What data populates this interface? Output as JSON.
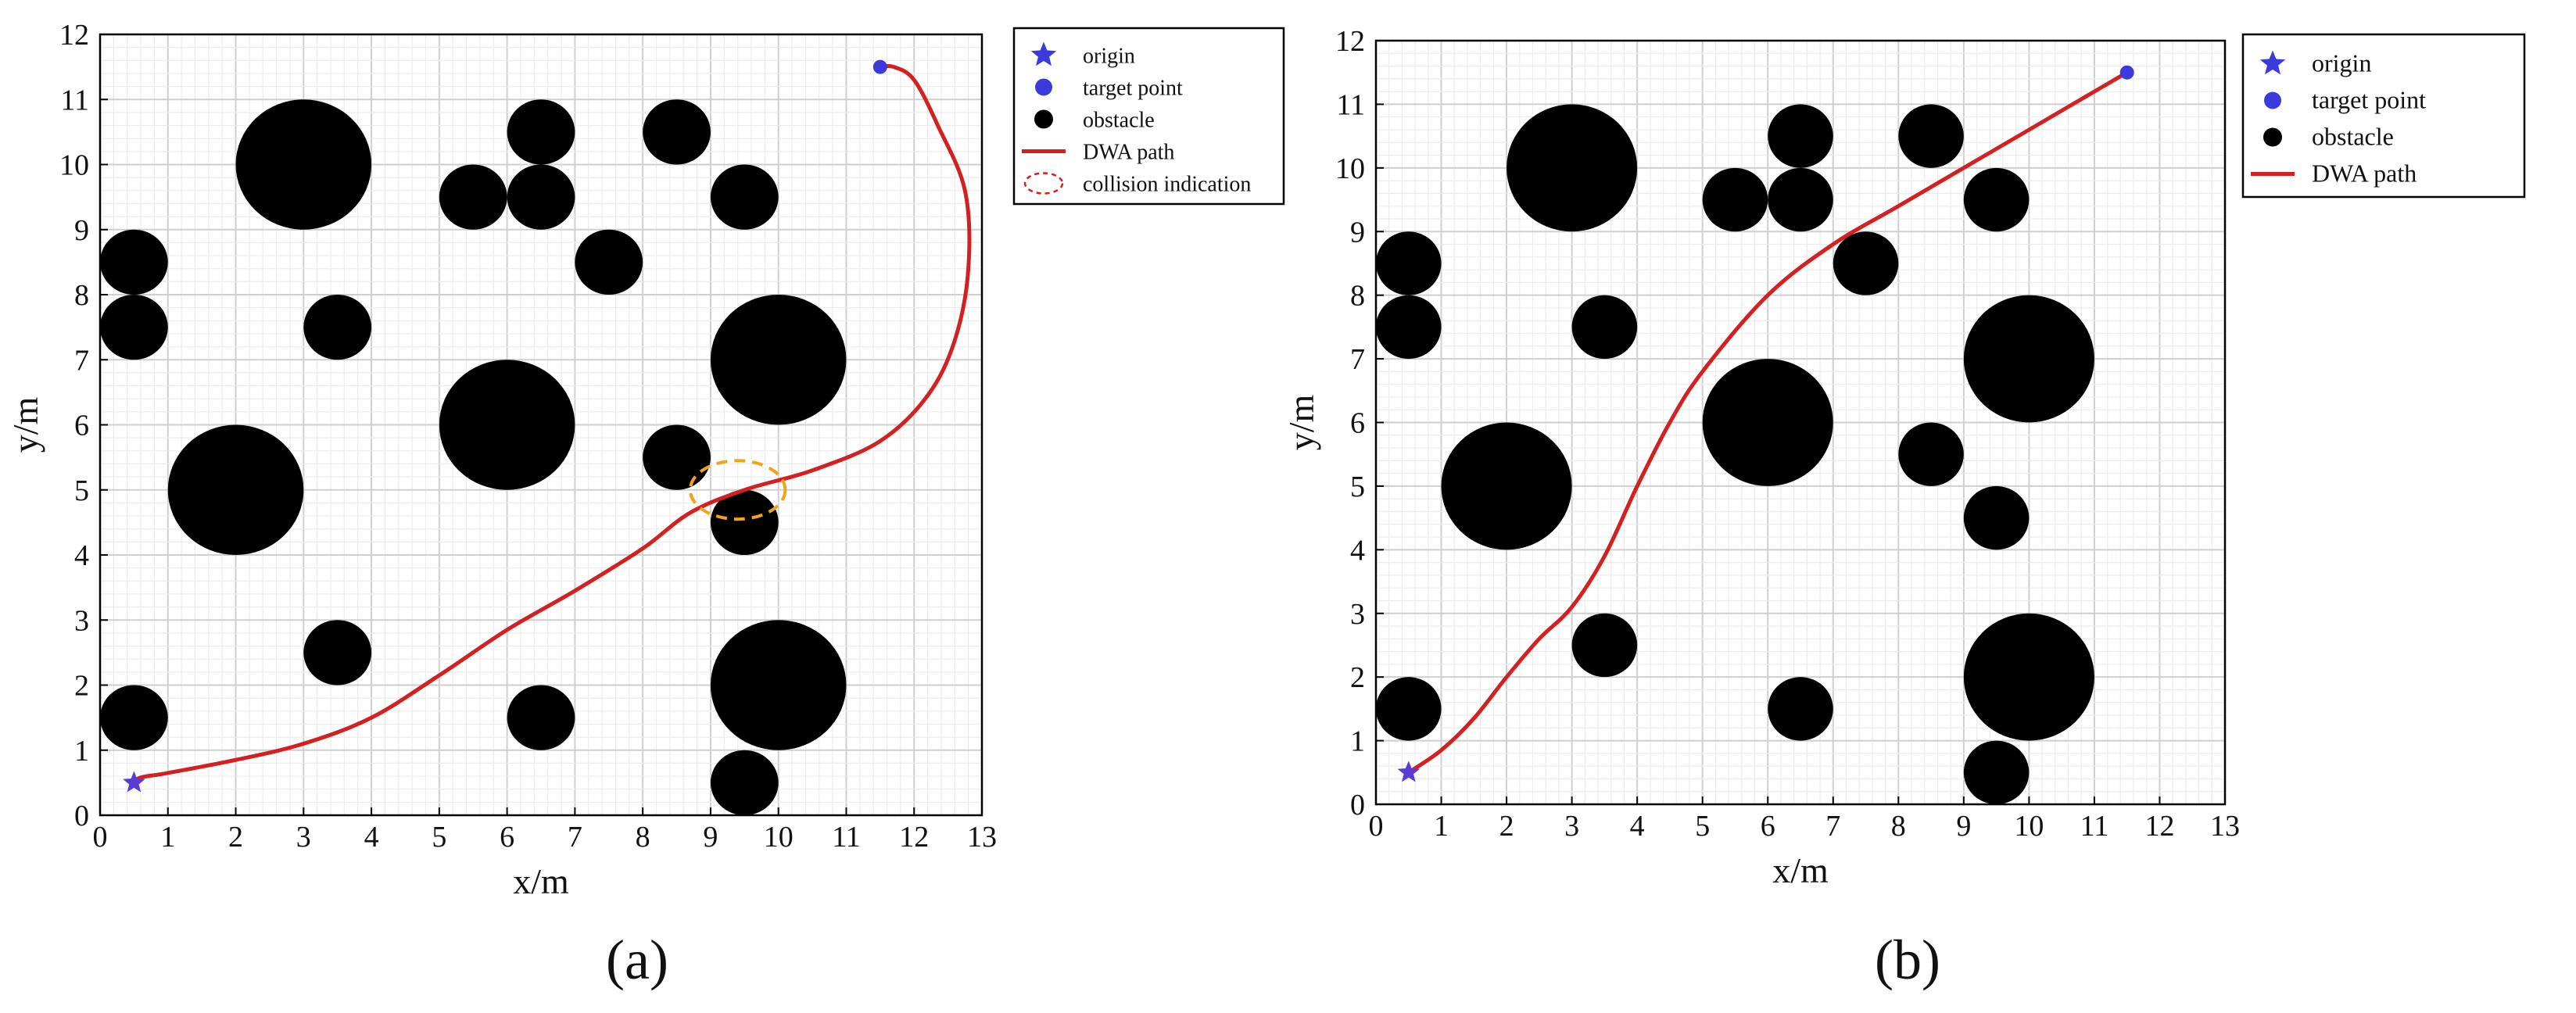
{
  "figure_labels": [
    "(a)",
    "(b)"
  ],
  "chart_data": [
    {
      "type": "scatter",
      "panel_label": "a",
      "xlabel": "x/m",
      "ylabel": "y/m",
      "xlim": [
        0,
        13
      ],
      "ylim": [
        0,
        12
      ],
      "xticks": [
        0,
        1,
        2,
        3,
        4,
        5,
        6,
        7,
        8,
        9,
        10,
        11,
        12,
        13
      ],
      "yticks": [
        0,
        1,
        2,
        3,
        4,
        5,
        6,
        7,
        8,
        9,
        10,
        11,
        12
      ],
      "grid": true,
      "legend_position": "top-right outside",
      "legend": [
        "origin",
        "target point",
        "obstacle",
        "DWA path",
        "collision indication"
      ],
      "origin": {
        "x": 0.5,
        "y": 0.5
      },
      "target": {
        "x": 11.5,
        "y": 11.5
      },
      "obstacles": [
        {
          "x": 3,
          "y": 10,
          "r": 1.0
        },
        {
          "x": 6,
          "y": 6,
          "r": 1.0
        },
        {
          "x": 2,
          "y": 5,
          "r": 1.0
        },
        {
          "x": 10,
          "y": 7,
          "r": 1.0
        },
        {
          "x": 10,
          "y": 2,
          "r": 1.0
        },
        {
          "x": 0.5,
          "y": 8.5,
          "r": 0.5
        },
        {
          "x": 0.5,
          "y": 7.5,
          "r": 0.5
        },
        {
          "x": 0.5,
          "y": 1.5,
          "r": 0.5
        },
        {
          "x": 3.5,
          "y": 7.5,
          "r": 0.5
        },
        {
          "x": 3.5,
          "y": 2.5,
          "r": 0.5
        },
        {
          "x": 5.5,
          "y": 9.5,
          "r": 0.5
        },
        {
          "x": 6.5,
          "y": 10.5,
          "r": 0.5
        },
        {
          "x": 6.5,
          "y": 9.5,
          "r": 0.5
        },
        {
          "x": 6.5,
          "y": 1.5,
          "r": 0.5
        },
        {
          "x": 7.5,
          "y": 8.5,
          "r": 0.5
        },
        {
          "x": 8.5,
          "y": 10.5,
          "r": 0.5
        },
        {
          "x": 8.5,
          "y": 5.5,
          "r": 0.5
        },
        {
          "x": 9.5,
          "y": 9.5,
          "r": 0.5
        },
        {
          "x": 9.5,
          "y": 4.5,
          "r": 0.5
        },
        {
          "x": 9.5,
          "y": 0.5,
          "r": 0.5
        }
      ],
      "path": [
        [
          0.5,
          0.5
        ],
        [
          0.6,
          0.58
        ],
        [
          1.0,
          0.65
        ],
        [
          2.0,
          0.85
        ],
        [
          3.0,
          1.1
        ],
        [
          4.0,
          1.5
        ],
        [
          5.0,
          2.15
        ],
        [
          6.0,
          2.85
        ],
        [
          7.0,
          3.45
        ],
        [
          8.0,
          4.1
        ],
        [
          8.7,
          4.65
        ],
        [
          9.5,
          5.0
        ],
        [
          10.5,
          5.3
        ],
        [
          11.5,
          5.75
        ],
        [
          12.2,
          6.45
        ],
        [
          12.6,
          7.3
        ],
        [
          12.8,
          8.4
        ],
        [
          12.75,
          9.6
        ],
        [
          12.35,
          10.6
        ],
        [
          12.0,
          11.3
        ],
        [
          11.7,
          11.5
        ],
        [
          11.5,
          11.5
        ]
      ],
      "collision_indication": {
        "x": 9.4,
        "y": 5.0,
        "rx": 0.7,
        "ry": 0.45
      }
    },
    {
      "type": "scatter",
      "panel_label": "b",
      "xlabel": "x/m",
      "ylabel": "y/m",
      "xlim": [
        0,
        13
      ],
      "ylim": [
        0,
        12
      ],
      "xticks": [
        0,
        1,
        2,
        3,
        4,
        5,
        6,
        7,
        8,
        9,
        10,
        11,
        12,
        13
      ],
      "yticks": [
        0,
        1,
        2,
        3,
        4,
        5,
        6,
        7,
        8,
        9,
        10,
        11,
        12
      ],
      "grid": true,
      "legend_position": "top-right outside",
      "legend": [
        "origin",
        "target point",
        "obstacle",
        "DWA path"
      ],
      "origin": {
        "x": 0.5,
        "y": 0.5
      },
      "target": {
        "x": 11.5,
        "y": 11.5
      },
      "obstacles": [
        {
          "x": 3,
          "y": 10,
          "r": 1.0
        },
        {
          "x": 6,
          "y": 6,
          "r": 1.0
        },
        {
          "x": 2,
          "y": 5,
          "r": 1.0
        },
        {
          "x": 10,
          "y": 7,
          "r": 1.0
        },
        {
          "x": 10,
          "y": 2,
          "r": 1.0
        },
        {
          "x": 0.5,
          "y": 8.5,
          "r": 0.5
        },
        {
          "x": 0.5,
          "y": 7.5,
          "r": 0.5
        },
        {
          "x": 0.5,
          "y": 1.5,
          "r": 0.5
        },
        {
          "x": 3.5,
          "y": 7.5,
          "r": 0.5
        },
        {
          "x": 3.5,
          "y": 2.5,
          "r": 0.5
        },
        {
          "x": 5.5,
          "y": 9.5,
          "r": 0.5
        },
        {
          "x": 6.5,
          "y": 10.5,
          "r": 0.5
        },
        {
          "x": 6.5,
          "y": 9.5,
          "r": 0.5
        },
        {
          "x": 6.5,
          "y": 1.5,
          "r": 0.5
        },
        {
          "x": 7.5,
          "y": 8.5,
          "r": 0.5
        },
        {
          "x": 8.5,
          "y": 10.5,
          "r": 0.5
        },
        {
          "x": 8.5,
          "y": 5.5,
          "r": 0.5
        },
        {
          "x": 9.5,
          "y": 9.5,
          "r": 0.5
        },
        {
          "x": 9.5,
          "y": 4.5,
          "r": 0.5
        },
        {
          "x": 9.5,
          "y": 0.5,
          "r": 0.5
        }
      ],
      "path": [
        [
          0.5,
          0.5
        ],
        [
          1.0,
          0.85
        ],
        [
          1.5,
          1.35
        ],
        [
          2.0,
          2.0
        ],
        [
          2.5,
          2.6
        ],
        [
          3.0,
          3.1
        ],
        [
          3.5,
          3.9
        ],
        [
          4.0,
          5.0
        ],
        [
          4.5,
          6.0
        ],
        [
          5.0,
          6.8
        ],
        [
          6.0,
          8.0
        ],
        [
          7.0,
          8.8
        ],
        [
          8.0,
          9.4
        ],
        [
          9.0,
          10.0
        ],
        [
          10.0,
          10.6
        ],
        [
          11.0,
          11.2
        ],
        [
          11.5,
          11.5
        ]
      ]
    }
  ],
  "colors": {
    "path": "#d42020",
    "target": "#3b3bdc",
    "origin": "#5b3bd6",
    "obstacle": "#000000",
    "collision_marker": "#f3a21a",
    "legend_collision": "#d42020",
    "grid_major": "#cfcfcf",
    "grid_minor": "#ececec"
  }
}
